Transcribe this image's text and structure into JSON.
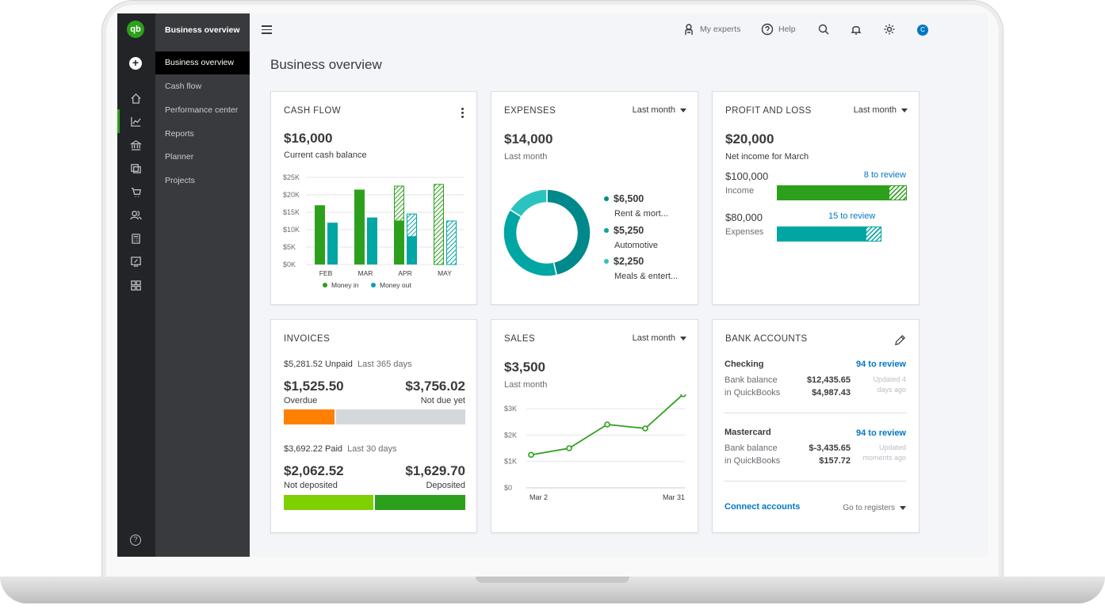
{
  "sidebar": {
    "title": "Business overview",
    "items": [
      {
        "label": "Business overview",
        "active": true
      },
      {
        "label": "Cash flow"
      },
      {
        "label": "Performance center"
      },
      {
        "label": "Reports"
      },
      {
        "label": "Planner"
      },
      {
        "label": "Projects"
      }
    ],
    "rail_icons": [
      "home-icon",
      "chart-icon",
      "bank-icon",
      "receipt-icon",
      "cart-icon",
      "people-icon",
      "calculator-icon",
      "tax-icon",
      "apps-icon"
    ],
    "logo_text": "qb"
  },
  "header": {
    "my_experts": "My experts",
    "help": "Help",
    "avatar_initial": "C"
  },
  "page_title": "Business overview",
  "colors": {
    "green": "#2ca01c",
    "teal": "#00a6a4",
    "dark_teal": "#00898a",
    "orange": "#ff8000",
    "lime": "#7fd000",
    "link": "#0077c5"
  },
  "cash_flow": {
    "title": "CASH FLOW",
    "amount": "$16,000",
    "caption": "Current cash balance",
    "chart_data": {
      "type": "bar",
      "categories": [
        "FEB",
        "MAR",
        "APR",
        "MAY"
      ],
      "y_ticks": [
        "$0K",
        "$5K",
        "$10K",
        "$15K",
        "$20K",
        "$25K"
      ],
      "ylim": [
        0,
        25000
      ],
      "series": [
        {
          "name": "Money in",
          "values": [
            17000,
            21500,
            22500,
            23000
          ],
          "projected": [
            0,
            0,
            12500,
            23000
          ]
        },
        {
          "name": "Money out",
          "values": [
            12000,
            13500,
            14500,
            12500
          ],
          "projected": [
            0,
            0,
            8000,
            12500
          ]
        }
      ]
    }
  },
  "expenses": {
    "title": "EXPENSES",
    "filter": "Last month",
    "amount": "$14,000",
    "caption": "Last month",
    "chart_data": {
      "type": "pie",
      "slices": [
        {
          "label": "Rent & mort...",
          "value": 6500,
          "value_label": "$6,500"
        },
        {
          "label": "Automotive",
          "value": 5250,
          "value_label": "$5,250"
        },
        {
          "label": "Meals & entert...",
          "value": 2250,
          "value_label": "$2,250"
        }
      ]
    }
  },
  "profit_loss": {
    "title": "PROFIT AND LOSS",
    "filter": "Last month",
    "amount": "$20,000",
    "caption": "Net income for March",
    "income": {
      "amount": "$100,000",
      "label": "Income",
      "review": "8 to review",
      "fill": 0.86
    },
    "expenses": {
      "amount": "$80,000",
      "label": "Expenses",
      "review": "15 to review",
      "fill": 0.85
    }
  },
  "invoices": {
    "title": "INVOICES",
    "unpaid_amount": "$5,281.52 Unpaid",
    "unpaid_period": "Last 365 days",
    "overdue_amount": "$1,525.50",
    "overdue_label": "Overdue",
    "not_due_amount": "$3,756.02",
    "not_due_label": "Not due yet",
    "unpaid_fill": 0.29,
    "paid_amount": "$3,692.22 Paid",
    "paid_period": "Last 30 days",
    "not_deposited_amount": "$2,062.52",
    "not_deposited_label": "Not deposited",
    "deposited_amount": "$1,629.70",
    "deposited_label": "Deposited",
    "paid_fill": 0.5
  },
  "sales": {
    "title": "SALES",
    "filter": "Last month",
    "amount": "$3,500",
    "caption": "Last month",
    "chart_data": {
      "type": "line",
      "x_labels": [
        "Mar 2",
        "Mar 31"
      ],
      "y_ticks": [
        "$0",
        "$1K",
        "$2K",
        "$3K"
      ],
      "ylim": [
        0,
        3000
      ],
      "values": [
        1250,
        1500,
        2400,
        2250,
        3550
      ]
    }
  },
  "bank_accounts": {
    "title": "BANK ACCOUNTS",
    "accounts": [
      {
        "name": "Checking",
        "review": "94 to review",
        "bank_label": "Bank balance",
        "bank_value": "$12,435.65",
        "qb_label": "in QuickBooks",
        "qb_value": "$4,987.43",
        "updated_1": "Updated 4",
        "updated_2": "days ago"
      },
      {
        "name": "Mastercard",
        "review": "94 to review",
        "bank_label": "Bank balance",
        "bank_value": "$-3,435.65",
        "qb_label": "in QuickBooks",
        "qb_value": "$157.72",
        "updated_1": "Updated",
        "updated_2": "moments ago"
      }
    ],
    "connect": "Connect accounts",
    "registers": "Go to registers"
  }
}
